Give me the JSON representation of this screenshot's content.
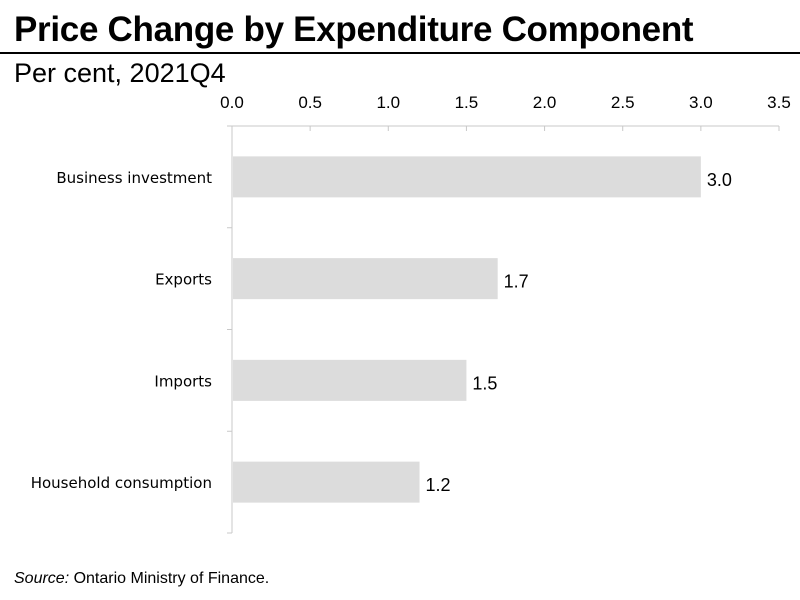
{
  "header": {
    "title": "Price Change by Expenditure Component",
    "subtitle": "Per cent, 2021Q4"
  },
  "footer": {
    "source_label": "Source:",
    "source_text": " Ontario Ministry of Finance."
  },
  "colors": {
    "bar": "#dcdcdc",
    "axis": "#c8c8c8",
    "text": "#000000"
  },
  "chart_data": {
    "type": "bar",
    "orientation": "horizontal",
    "categories": [
      "Business investment",
      "Exports",
      "Imports",
      "Household consumption"
    ],
    "values": [
      3.0,
      1.7,
      1.5,
      1.2
    ],
    "value_labels": [
      "3.0",
      "1.7",
      "1.5",
      "1.2"
    ],
    "x_ticks": [
      "0.0",
      "0.5",
      "1.0",
      "1.5",
      "2.0",
      "2.5",
      "3.0",
      "3.5"
    ],
    "xlim": [
      0,
      3.5
    ],
    "x_axis_position": "top",
    "grid": false,
    "legend": "none",
    "title": "Price Change by Expenditure Component",
    "xlabel": "",
    "ylabel": ""
  }
}
